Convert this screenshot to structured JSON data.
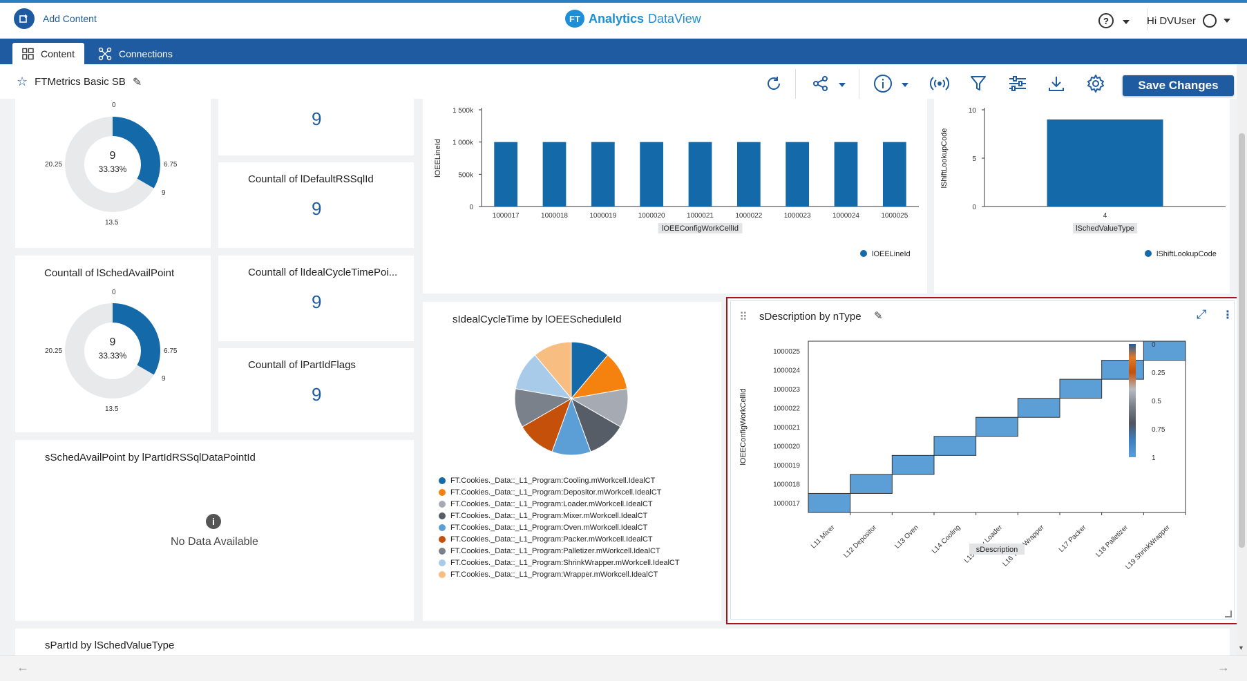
{
  "header": {
    "add_content": "Add Content",
    "logo_badge": "FT",
    "logo_brand": "Analytics",
    "logo_product": "DataView",
    "help_symbol": "?",
    "user_greeting": "Hi DVUser"
  },
  "nav": {
    "tabs": [
      {
        "label": "Content",
        "active": true,
        "icon": "grid-icon"
      },
      {
        "label": "Connections",
        "active": false,
        "icon": "network-icon"
      }
    ]
  },
  "toolbar": {
    "dashboard_title": "FTMetrics Basic SB",
    "save_label": "Save Changes",
    "icons": [
      "refresh-icon",
      "share-icon",
      "info-icon",
      "broadcast-icon",
      "filter-icon",
      "sliders-icon",
      "download-icon",
      "gear-icon"
    ]
  },
  "cards": {
    "donut1": {
      "center_value": "9",
      "center_pct": "33.33%",
      "ticks": [
        "0",
        "6.75",
        "9",
        "13.5",
        "20.25"
      ]
    },
    "kpi_top": {
      "value": "9"
    },
    "kpi_default": {
      "title": "Countall of lDefaultRSSqlId",
      "value": "9"
    },
    "donut2": {
      "title": "Countall of lSchedAvailPoint",
      "center_value": "9",
      "center_pct": "33.33%",
      "ticks": [
        "0",
        "6.75",
        "9",
        "13.5",
        "20.25"
      ]
    },
    "kpi_ideal": {
      "title": "Countall of lIdealCycleTimePoi...",
      "value": "9"
    },
    "kpi_partid": {
      "title": "Countall of lPartIdFlags",
      "value": "9"
    },
    "nodata": {
      "title": "sSchedAvailPoint by lPartIdRSSqlDataPointId",
      "message": "No Data Available",
      "icon": "info-icon"
    },
    "bottom": {
      "title": "sPartId by lSchedValueType"
    },
    "pie_title": "sIdealCycleTime by lOEEScheduleId",
    "heatmap_title": "sDescription by nType"
  },
  "chart_data": [
    {
      "type": "bar",
      "title": "",
      "xlabel": "lOEEConfigWorkCellId",
      "ylabel": "lOEELineId",
      "categories": [
        "1000017",
        "1000018",
        "1000019",
        "1000020",
        "1000021",
        "1000022",
        "1000023",
        "1000024",
        "1000025"
      ],
      "series": [
        {
          "name": "lOEELineId",
          "values": [
            1000000,
            1000000,
            1000000,
            1000000,
            1000000,
            1000000,
            1000000,
            1000000,
            1000000
          ],
          "color": "#1469a8"
        }
      ],
      "ylim": [
        0,
        1500000
      ],
      "yticks": [
        "0",
        "500k",
        "1 000k",
        "1 500k"
      ],
      "legend": "bottom-right"
    },
    {
      "type": "bar",
      "title": "",
      "xlabel": "lSchedValueType",
      "ylabel": "lShiftLookupCode",
      "categories": [
        "4"
      ],
      "series": [
        {
          "name": "lShiftLookupCode",
          "values": [
            9
          ],
          "color": "#1469a8"
        }
      ],
      "ylim": [
        0,
        10
      ],
      "yticks": [
        "0",
        "5",
        "10"
      ],
      "legend": "bottom-right"
    },
    {
      "type": "pie",
      "title": "sIdealCycleTime by lOEEScheduleId",
      "labels": [
        "FT.Cookies._Data::_L1_Program:Cooling.mWorkcell.IdealCT",
        "FT.Cookies._Data::_L1_Program:Depositor.mWorkcell.IdealCT",
        "FT.Cookies._Data::_L1_Program:Loader.mWorkcell.IdealCT",
        "FT.Cookies._Data::_L1_Program:Mixer.mWorkcell.IdealCT",
        "FT.Cookies._Data::_L1_Program:Oven.mWorkcell.IdealCT",
        "FT.Cookies._Data::_L1_Program:Packer.mWorkcell.IdealCT",
        "FT.Cookies._Data::_L1_Program:Palletizer.mWorkcell.IdealCT",
        "FT.Cookies._Data::_L1_Program:ShrinkWrapper.mWorkcell.IdealCT",
        "FT.Cookies._Data::_L1_Program:Wrapper.mWorkcell.IdealCT"
      ],
      "values": [
        1,
        1,
        1,
        1,
        1,
        1,
        1,
        1,
        1
      ],
      "colors": [
        "#1469a8",
        "#f5820f",
        "#a6abb3",
        "#575d66",
        "#5b9fd6",
        "#c4500a",
        "#7b818a",
        "#a8cbea",
        "#f8bd80"
      ],
      "legend": "bottom"
    },
    {
      "type": "heatmap",
      "title": "sDescription by nType",
      "xlabel": "sDescription",
      "ylabel": "lOEEConfigWorkCellId",
      "x": [
        "L11 Mixer",
        "L12 Depositor",
        "L13 Oven",
        "L14 Cooling",
        "L15 Tray Loader",
        "L16 Tray Wrapper",
        "L17 Packer",
        "L18 Palletizer",
        "L19 ShrinkWrapper"
      ],
      "y": [
        "1000017",
        "1000018",
        "1000019",
        "1000020",
        "1000021",
        "1000022",
        "1000023",
        "1000024",
        "1000025"
      ],
      "cells": [
        [
          0,
          0,
          1
        ],
        [
          1,
          1,
          1
        ],
        [
          2,
          2,
          1
        ],
        [
          3,
          3,
          1
        ],
        [
          4,
          4,
          1
        ],
        [
          5,
          5,
          1
        ],
        [
          6,
          6,
          1
        ],
        [
          7,
          7,
          1
        ],
        [
          8,
          8,
          1
        ]
      ],
      "colorbar_ticks": [
        "0",
        "0.25",
        "0.5",
        "0.75",
        "1"
      ],
      "cell_color": "#5b9fd6"
    }
  ],
  "colors": {
    "brand": "#1f5ba0",
    "accent": "#1469a8",
    "highlight_border": "#b0121b"
  }
}
